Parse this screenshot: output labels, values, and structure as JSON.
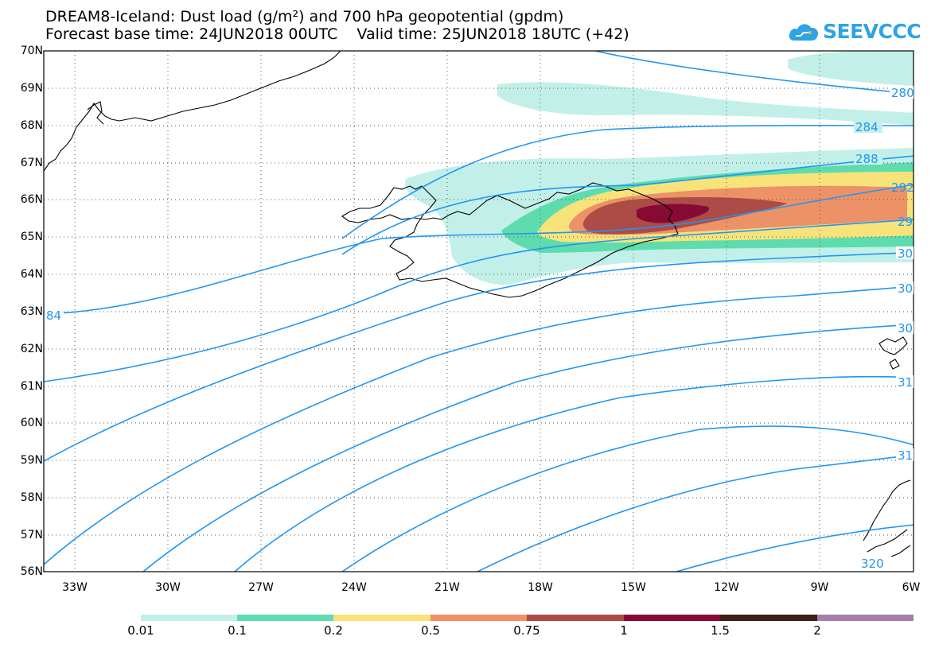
{
  "header": {
    "title_line1": "DREAM8-Iceland: Dust load (g/m²) and 700 hPa geopotential (gpdm)",
    "title_line2": "Forecast base time: 24JUN2018 00UTC    Valid time: 25JUN2018 18UTC (+42)"
  },
  "logo": {
    "text": "SEEVCCC",
    "icon": "cloud-icon",
    "color": "#2ea3e6"
  },
  "axes": {
    "lat_labels": [
      "70N",
      "69N",
      "68N",
      "67N",
      "66N",
      "65N",
      "64N",
      "63N",
      "62N",
      "61N",
      "60N",
      "59N",
      "58N",
      "57N",
      "56N"
    ],
    "lon_labels": [
      "33W",
      "30W",
      "27W",
      "24W",
      "21W",
      "18W",
      "15W",
      "12W",
      "9W",
      "6W"
    ]
  },
  "contour_labels": [
    "280",
    "284",
    "288",
    "292",
    "29",
    "30",
    "30",
    "30",
    "31",
    "31",
    "320",
    "84"
  ],
  "colorbar": {
    "labels": [
      "0.01",
      "0.1",
      "0.2",
      "0.5",
      "0.75",
      "1",
      "1.5",
      "2"
    ],
    "colors": [
      "#c2f0e9",
      "#5edcae",
      "#f7e37a",
      "#ed9166",
      "#ad4b47",
      "#860a34",
      "#3a2314",
      "#a67fa9"
    ]
  },
  "colors": {
    "contour": "#2196f3",
    "coast": "#000000"
  }
}
